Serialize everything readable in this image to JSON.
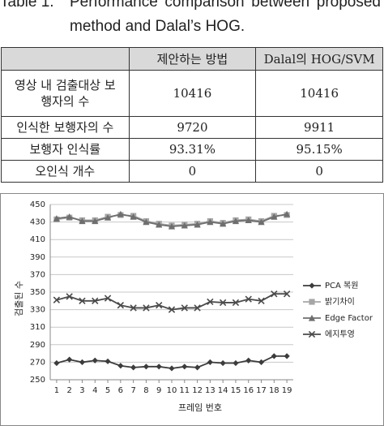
{
  "caption": {
    "label": "Table 1.",
    "text": "Performance comparison between proposed method and Dalal’s HOG."
  },
  "table": {
    "header": [
      "",
      "제안하는 방법",
      "Dalal의 HOG/SVM"
    ],
    "rows": [
      [
        "영상 내 검출대상 보행자의 수",
        "10416",
        "10416"
      ],
      [
        "인식한 보행자의 수",
        "9720",
        "9911"
      ],
      [
        "보행자 인식률",
        "93.31%",
        "95.15%"
      ],
      [
        "오인식 개수",
        "0",
        "0"
      ]
    ]
  },
  "chart_data": {
    "type": "line",
    "x_label": "프레임 번호",
    "y_label": "검출된 수",
    "x": [
      1,
      2,
      3,
      4,
      5,
      6,
      7,
      8,
      9,
      10,
      11,
      12,
      13,
      14,
      15,
      16,
      17,
      18,
      19
    ],
    "xlim": [
      0.5,
      19.5
    ],
    "xticks": [
      1,
      2,
      3,
      4,
      5,
      6,
      7,
      8,
      9,
      10,
      11,
      12,
      13,
      14,
      15,
      16,
      17,
      18,
      19
    ],
    "ylim": [
      250,
      450
    ],
    "yticks": [
      250,
      270,
      290,
      310,
      330,
      350,
      370,
      390,
      410,
      430,
      450
    ],
    "grid": true,
    "legend": "right",
    "series": [
      {
        "name": "PCA 복원",
        "color": "#3c3c3c",
        "marker": "diamond",
        "values": [
          269,
          273,
          270,
          272,
          271,
          266,
          264,
          265,
          265,
          263,
          265,
          264,
          270,
          269,
          269,
          272,
          270,
          277,
          277
        ]
      },
      {
        "name": "밝기차이",
        "color": "#a6a6a6",
        "marker": "square",
        "values": [
          433,
          435,
          432,
          432,
          436,
          438,
          437,
          431,
          428,
          426,
          427,
          428,
          431,
          429,
          432,
          433,
          431,
          437,
          438
        ]
      },
      {
        "name": "Edge Factor",
        "color": "#6e6e6e",
        "marker": "triangle",
        "values": [
          434,
          436,
          431,
          431,
          435,
          439,
          436,
          430,
          427,
          425,
          426,
          427,
          430,
          428,
          431,
          432,
          430,
          436,
          439
        ]
      },
      {
        "name": "에지투영",
        "color": "#4a4a4a",
        "marker": "x",
        "values": [
          341,
          345,
          340,
          340,
          343,
          335,
          332,
          332,
          335,
          330,
          332,
          332,
          339,
          338,
          338,
          342,
          340,
          348,
          348
        ]
      }
    ]
  }
}
